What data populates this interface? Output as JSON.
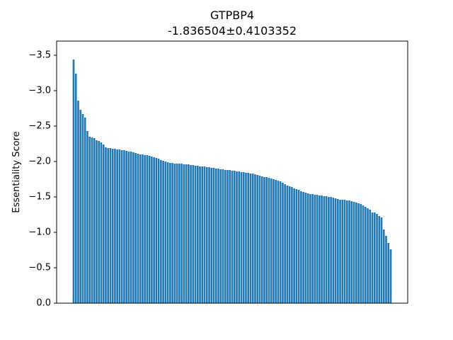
{
  "chart_data": {
    "type": "bar",
    "title": "GTPBP4",
    "subtitle": "-1.836504±0.4103352",
    "xlabel": "",
    "ylabel": "Essentiality Score",
    "ylim": [
      0,
      -3.7
    ],
    "y_inverted": true,
    "yticks": [
      0.0,
      -0.5,
      -1.0,
      -1.5,
      -2.0,
      -2.5,
      -3.0,
      -3.5
    ],
    "ytick_labels": [
      "0.0",
      "−0.5",
      "−1.0",
      "−1.5",
      "−2.0",
      "−2.5",
      "−3.0",
      "−3.5"
    ],
    "grid": false,
    "bar_color": "#1f77b4",
    "values": [
      -3.44,
      -3.24,
      -2.86,
      -2.73,
      -2.67,
      -2.62,
      -2.43,
      -2.35,
      -2.34,
      -2.33,
      -2.3,
      -2.29,
      -2.27,
      -2.24,
      -2.2,
      -2.19,
      -2.19,
      -2.18,
      -2.18,
      -2.17,
      -2.17,
      -2.16,
      -2.16,
      -2.15,
      -2.14,
      -2.14,
      -2.13,
      -2.12,
      -2.11,
      -2.1,
      -2.1,
      -2.09,
      -2.09,
      -2.08,
      -2.07,
      -2.06,
      -2.05,
      -2.04,
      -2.02,
      -2.01,
      -2.0,
      -1.99,
      -1.98,
      -1.98,
      -1.97,
      -1.97,
      -1.97,
      -1.97,
      -1.96,
      -1.96,
      -1.96,
      -1.95,
      -1.95,
      -1.94,
      -1.94,
      -1.93,
      -1.93,
      -1.93,
      -1.92,
      -1.92,
      -1.91,
      -1.91,
      -1.9,
      -1.9,
      -1.89,
      -1.89,
      -1.88,
      -1.88,
      -1.88,
      -1.87,
      -1.87,
      -1.86,
      -1.86,
      -1.85,
      -1.85,
      -1.84,
      -1.84,
      -1.83,
      -1.83,
      -1.82,
      -1.81,
      -1.8,
      -1.79,
      -1.78,
      -1.78,
      -1.77,
      -1.76,
      -1.75,
      -1.74,
      -1.73,
      -1.72,
      -1.7,
      -1.68,
      -1.66,
      -1.65,
      -1.64,
      -1.62,
      -1.61,
      -1.6,
      -1.58,
      -1.57,
      -1.56,
      -1.55,
      -1.54,
      -1.54,
      -1.53,
      -1.53,
      -1.52,
      -1.52,
      -1.51,
      -1.51,
      -1.5,
      -1.5,
      -1.49,
      -1.48,
      -1.47,
      -1.46,
      -1.46,
      -1.46,
      -1.45,
      -1.45,
      -1.44,
      -1.43,
      -1.42,
      -1.41,
      -1.4,
      -1.38,
      -1.36,
      -1.34,
      -1.32,
      -1.28,
      -1.28,
      -1.26,
      -1.23,
      -1.21,
      -1.04,
      -0.95,
      -0.85,
      -0.76
    ]
  }
}
